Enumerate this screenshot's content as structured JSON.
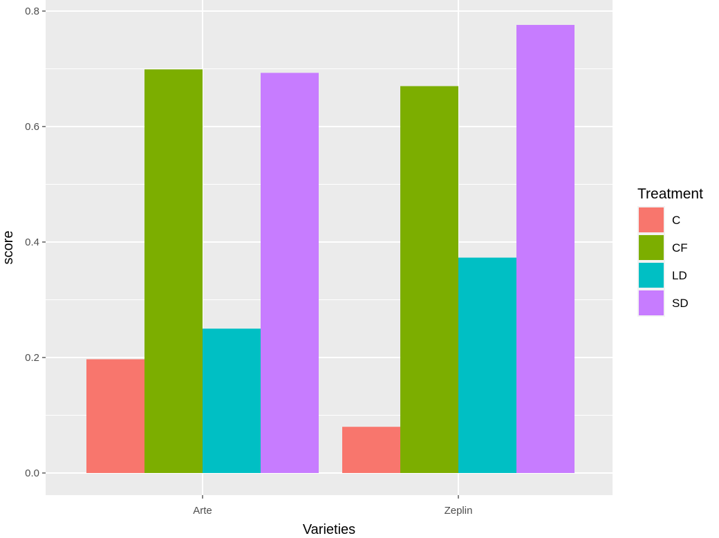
{
  "chart_data": {
    "type": "bar",
    "xlabel": "Varieties",
    "ylabel": "score",
    "categories": [
      "Arte",
      "Zeplin"
    ],
    "series": [
      {
        "name": "C",
        "values": [
          0.197,
          0.08
        ],
        "color": "#F8766D"
      },
      {
        "name": "CF",
        "values": [
          0.699,
          0.67
        ],
        "color": "#7CAE00"
      },
      {
        "name": "LD",
        "values": [
          0.25,
          0.373
        ],
        "color": "#00BFC4"
      },
      {
        "name": "SD",
        "values": [
          0.693,
          0.776
        ],
        "color": "#C77CFF"
      }
    ],
    "ylim": [
      0,
      0.8
    ],
    "y_ticks": [
      "0.0",
      "0.2",
      "0.4",
      "0.6",
      "0.8"
    ],
    "legend": {
      "title": "Treatment",
      "position": "right"
    },
    "grid": true,
    "panel_background": "#EBEBEB"
  }
}
